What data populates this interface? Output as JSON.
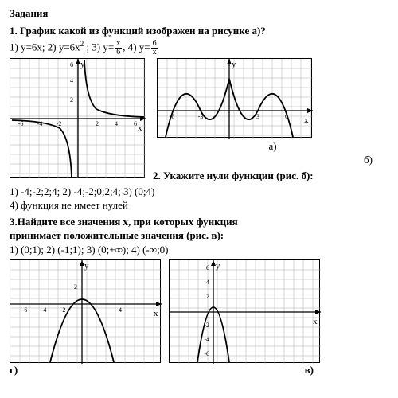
{
  "heading": "Задания",
  "q1": {
    "prompt_prefix": "1. График какой из функций изображен на рисунке а)?",
    "opt1_prefix": "1) y=6x; 2) y=6x",
    "opt1_sq": "2",
    "opt1_mid": " ; 3) y=",
    "frac1_num": "x",
    "frac1_den": "6",
    "opt1_mid2": ", 4) y=",
    "frac2_num": "6",
    "frac2_den": "x"
  },
  "graph_a": {
    "type": "hyperbola",
    "label_a": "а)",
    "label_b": "б)",
    "axis_label_x": "x",
    "axis_label_y": "y",
    "xlim": [
      -6,
      6
    ],
    "ylim": [
      -6,
      6
    ],
    "xtick_labels": [
      "-6",
      "-4",
      "-2",
      "2",
      "4",
      "6"
    ],
    "ytick_labels": [
      "2",
      "4",
      "6"
    ],
    "grid_color": "#888",
    "curve_color": "#000"
  },
  "graph_b": {
    "type": "wave",
    "axis_label_x": "x",
    "axis_label_y": "y",
    "xlim": [
      -6,
      7
    ],
    "ylim": [
      -3,
      5
    ],
    "xtick_labels": [
      "-6",
      "-3",
      "3",
      "6"
    ],
    "grid_color": "#888",
    "curve_color": "#000"
  },
  "q2": {
    "prompt": "2. Укажите нули функции (рис. б):",
    "opts_line1": "1) -4;-2;2;4;  2) -4;-2;0;2;4;  3) (0;4)",
    "opts_line2": "4) функция не имеет нулей"
  },
  "q3": {
    "prompt_l1": "3.Найдите все значения х, при которых функция",
    "prompt_l2": "принимает положительные значения (рис. в):",
    "opts": "1) (0;1);  2) (-1;1);     3) (0;+∞);       4) (-∞;0)"
  },
  "graph_g": {
    "type": "parabola_down",
    "label": "г)",
    "axis_label_x": "x",
    "axis_label_y": "y",
    "xlim": [
      -6,
      7
    ],
    "ylim": [
      -6,
      5
    ],
    "xtick_labels": [
      "-6",
      "-4",
      "-2",
      "",
      "4",
      ""
    ],
    "ytick_labels": [
      "2"
    ],
    "grid_color": "#888",
    "curve_color": "#000",
    "vertex": [
      0,
      2
    ]
  },
  "graph_v": {
    "type": "parabola_down",
    "label": "в)",
    "axis_label_x": "x",
    "axis_label_y": "y",
    "xlim": [
      -4,
      9
    ],
    "ylim": [
      -6,
      6
    ],
    "ytick_labels": [
      "-6",
      "-4",
      "-2",
      "2",
      "4",
      "6"
    ],
    "grid_color": "#888",
    "curve_color": "#000",
    "vertex": [
      0,
      1
    ]
  }
}
